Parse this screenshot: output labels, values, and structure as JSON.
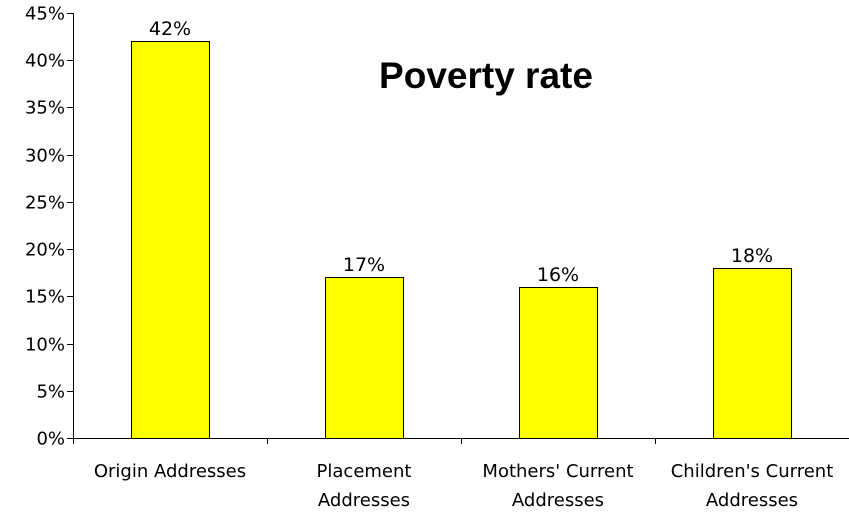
{
  "chart_data": {
    "type": "bar",
    "title": "Poverty rate",
    "xlabel": "",
    "ylabel": "",
    "categories": [
      [
        "Origin Addresses"
      ],
      [
        "Placement",
        "Addresses"
      ],
      [
        "Mothers' Current",
        "Addresses"
      ],
      [
        "Children's Current",
        "Addresses"
      ]
    ],
    "values": [
      42,
      17,
      16,
      18
    ],
    "data_labels": [
      "42%",
      "17%",
      "16%",
      "18%"
    ],
    "ylim": [
      0,
      45
    ],
    "yticks": [
      0,
      5,
      10,
      15,
      20,
      25,
      30,
      35,
      40,
      45
    ],
    "ytick_labels": [
      "0%",
      "5%",
      "10%",
      "15%",
      "20%",
      "25%",
      "30%",
      "35%",
      "40%",
      "45%"
    ],
    "grid": false,
    "legend": "none",
    "colors": {
      "bar_fill": "#ffff00",
      "bar_stroke": "#000000",
      "axis": "#000000"
    }
  }
}
